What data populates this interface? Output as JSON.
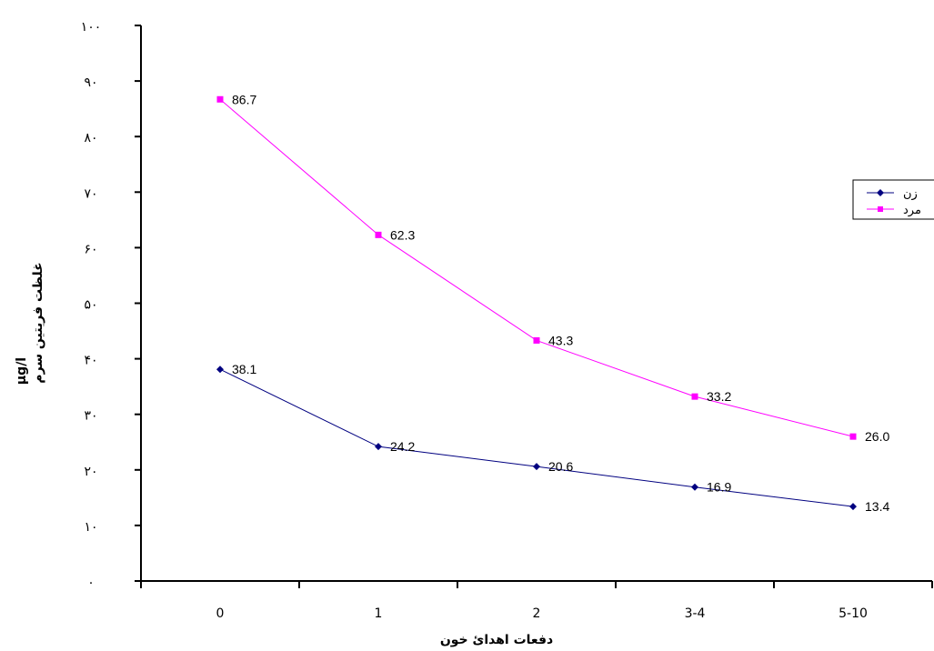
{
  "chart_data": {
    "type": "line",
    "categories": [
      "0",
      "1",
      "2",
      "3-4",
      "5-10"
    ],
    "series": [
      {
        "name": "زن",
        "color": "#000080",
        "marker": "diamond",
        "values": [
          38.1,
          24.2,
          20.6,
          16.9,
          13.4
        ],
        "labels": [
          "38.1",
          "24.2",
          "20.6",
          "16.9",
          "13.4"
        ]
      },
      {
        "name": "مرد",
        "color": "#FF00FF",
        "marker": "square",
        "values": [
          86.7,
          62.3,
          43.3,
          33.2,
          26.0
        ],
        "labels": [
          "86.7",
          "62.3",
          "43.3",
          "33.2",
          "26.0"
        ]
      }
    ],
    "xlabel": "دفعات اهدائ خون",
    "ylabel_unit": "µg/l",
    "ylabel": "غلظت فریتین سرم",
    "ylim": [
      0,
      100
    ],
    "yticks": [
      0,
      10,
      20,
      30,
      40,
      50,
      60,
      70,
      80,
      90,
      100
    ],
    "ytick_labels": [
      "٠",
      "١٠",
      "٢٠",
      "٣٠",
      "۴٠",
      "۵٠",
      "۶٠",
      "٧٠",
      "٨٠",
      "٩٠",
      "١٠٠"
    ],
    "legend_position": "right",
    "grid": false
  }
}
